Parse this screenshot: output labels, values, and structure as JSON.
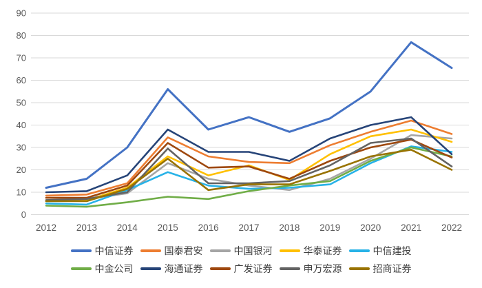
{
  "chart_data": {
    "type": "line",
    "title": "",
    "xlabel": "",
    "ylabel": "",
    "ylim": [
      0,
      90
    ],
    "yticks": [
      0,
      10,
      20,
      30,
      40,
      50,
      60,
      70,
      80,
      90
    ],
    "grid": true,
    "legend_position": "bottom",
    "categories": [
      "2012",
      "2013",
      "2014",
      "2015",
      "2016",
      "2017",
      "2018",
      "2019",
      "2020",
      "2021",
      "2022"
    ],
    "series": [
      {
        "name": "中信证券",
        "color": "#4472C4",
        "width": 3,
        "values": [
          12,
          16,
          30,
          56,
          38,
          43.5,
          37,
          43,
          55,
          77,
          65.5
        ]
      },
      {
        "name": "国泰君安",
        "color": "#ED7D31",
        "width": 2.6,
        "values": [
          8.5,
          9,
          14,
          34.5,
          26,
          23.5,
          23,
          31,
          37,
          42,
          36
        ]
      },
      {
        "name": "中国银河",
        "color": "#A5A5A5",
        "width": 2.6,
        "values": [
          6.5,
          7,
          9.5,
          23,
          16,
          13,
          11,
          16,
          25,
          35.5,
          34
        ]
      },
      {
        "name": "华泰证券",
        "color": "#FFC000",
        "width": 2.6,
        "values": [
          6,
          6.5,
          12,
          26,
          17.5,
          22,
          15.5,
          27,
          35,
          38,
          32.5
        ]
      },
      {
        "name": "中信建投",
        "color": "#27B2E7",
        "width": 2.6,
        "values": [
          5,
          4.5,
          11,
          19,
          13,
          11.5,
          12,
          13.5,
          23,
          30.5,
          28
        ]
      },
      {
        "name": "中金公司",
        "color": "#70AD47",
        "width": 2.6,
        "values": [
          4,
          3.5,
          5.5,
          8,
          7,
          10.5,
          13,
          15,
          24,
          30,
          26
        ]
      },
      {
        "name": "海通证券",
        "color": "#264478",
        "width": 2.6,
        "values": [
          10,
          10.5,
          17.5,
          38,
          28,
          28,
          24,
          34,
          40,
          43.5,
          27
        ]
      },
      {
        "name": "广发证券",
        "color": "#9E480E",
        "width": 2.6,
        "values": [
          7.5,
          7.5,
          13,
          32,
          21,
          21.5,
          16,
          24,
          30,
          33.5,
          25.5
        ]
      },
      {
        "name": "申万宏源",
        "color": "#636363",
        "width": 2.6,
        "values": [
          6.5,
          7,
          10,
          29.5,
          14,
          14,
          15,
          22,
          32,
          34,
          21.5
        ]
      },
      {
        "name": "招商证券",
        "color": "#997300",
        "width": 2.6,
        "values": [
          6,
          6,
          11.5,
          25,
          11,
          13.5,
          13.5,
          19.5,
          26,
          29,
          20
        ]
      }
    ],
    "legend_rows": [
      [
        0,
        1,
        2,
        3,
        4
      ],
      [
        5,
        6,
        7,
        8,
        9
      ]
    ]
  },
  "style": {
    "gridline_color": "#D9D9D9",
    "axis_label_color": "#595959",
    "legend_text_color": "#404040",
    "background": "#FFFFFF"
  }
}
